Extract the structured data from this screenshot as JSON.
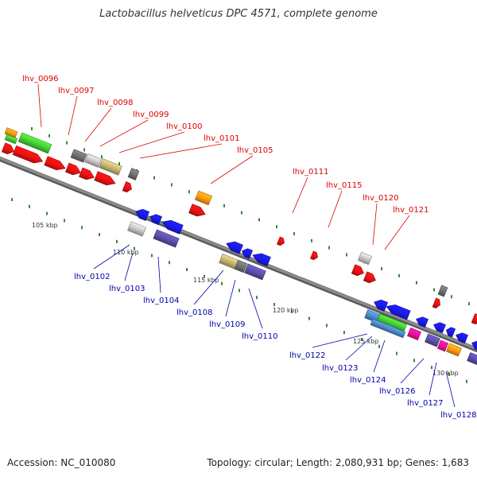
{
  "title": "Lactobacillus helveticus DPC 4571, complete genome",
  "footer": {
    "accession": "Accession: NC_010080",
    "summary": "Topology: circular; Length: 2,080,931 bp; Genes: 1,683"
  },
  "colors": {
    "backbone": "#8c8c8c",
    "tick": "#2f8f2f",
    "label_plus": "#dd0000",
    "label_minus": "#0000aa",
    "red": "#ee1111",
    "blue": "#1a1aee",
    "green": "#44cc33",
    "orange": "#ff9911",
    "gray": "#c4c4c4",
    "darkgray": "#707070",
    "olive": "#c2b270",
    "purple": "#5a4ea8",
    "steelblue": "#4a88c8",
    "magenta": "#ee1199"
  },
  "kbp_labels": [
    "105 kbp",
    "110 kbp",
    "115 kbp",
    "120 kbp",
    "125 kbp",
    "130 kbp"
  ],
  "genes_plus": [
    "lhv_0096",
    "lhv_0097",
    "lhv_0098",
    "lhv_0099",
    "lhv_0100",
    "lhv_0101",
    "lhv_0105",
    "lhv_0111",
    "lhv_0115",
    "lhv_0120",
    "lhv_0121"
  ],
  "genes_minus": [
    "lhv_0102",
    "lhv_0103",
    "lhv_0104",
    "lhv_0108",
    "lhv_0109",
    "lhv_0110",
    "lhv_0122",
    "lhv_0123",
    "lhv_0124",
    "lhv_0126",
    "lhv_0127",
    "lhv_0128"
  ]
}
